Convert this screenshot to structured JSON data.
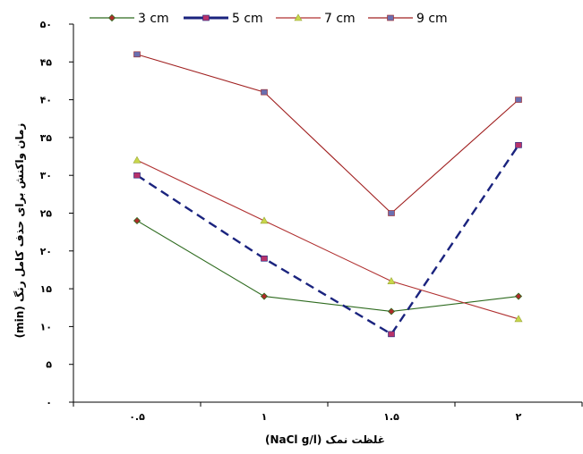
{
  "chart_data": {
    "type": "line",
    "title": "",
    "xlabel": "غلظت نمک  (NaCl g/l)",
    "ylabel": "زمان واکنش برای حذف کامل رنگ (min)",
    "categories": [
      "۰.۵",
      "۱",
      "۱.۵",
      "۲"
    ],
    "ylim": [
      0,
      50
    ],
    "yticks": [
      0,
      5,
      10,
      15,
      20,
      25,
      30,
      35,
      40,
      45,
      50
    ],
    "ytick_labels": [
      "۰",
      "۵",
      "۱۰",
      "۱۵",
      "۲۰",
      "۲۵",
      "۳۰",
      "۳۵",
      "۴۰",
      "۴۵",
      "۵۰"
    ],
    "grid": false,
    "legend_position": "top",
    "series": [
      {
        "name": "3 cm",
        "values": [
          24,
          14,
          12,
          14
        ],
        "color": "#2e6b1f",
        "marker_color": "#b02a2a",
        "marker": "diamond",
        "dash": ""
      },
      {
        "name": "5 cm",
        "values": [
          30,
          19,
          9,
          34
        ],
        "color": "#1a237e",
        "marker_color": "#b8326a",
        "marker": "square",
        "dash": "10,6"
      },
      {
        "name": "7 cm",
        "values": [
          32,
          24,
          16,
          11
        ],
        "color": "#b03030",
        "marker_color": "#c8d64a",
        "marker": "triangle",
        "dash": ""
      },
      {
        "name": "9 cm",
        "values": [
          46,
          41,
          25,
          40
        ],
        "color": "#a02020",
        "marker_color": "#6a6fb0",
        "marker": "square",
        "dash": ""
      }
    ]
  }
}
